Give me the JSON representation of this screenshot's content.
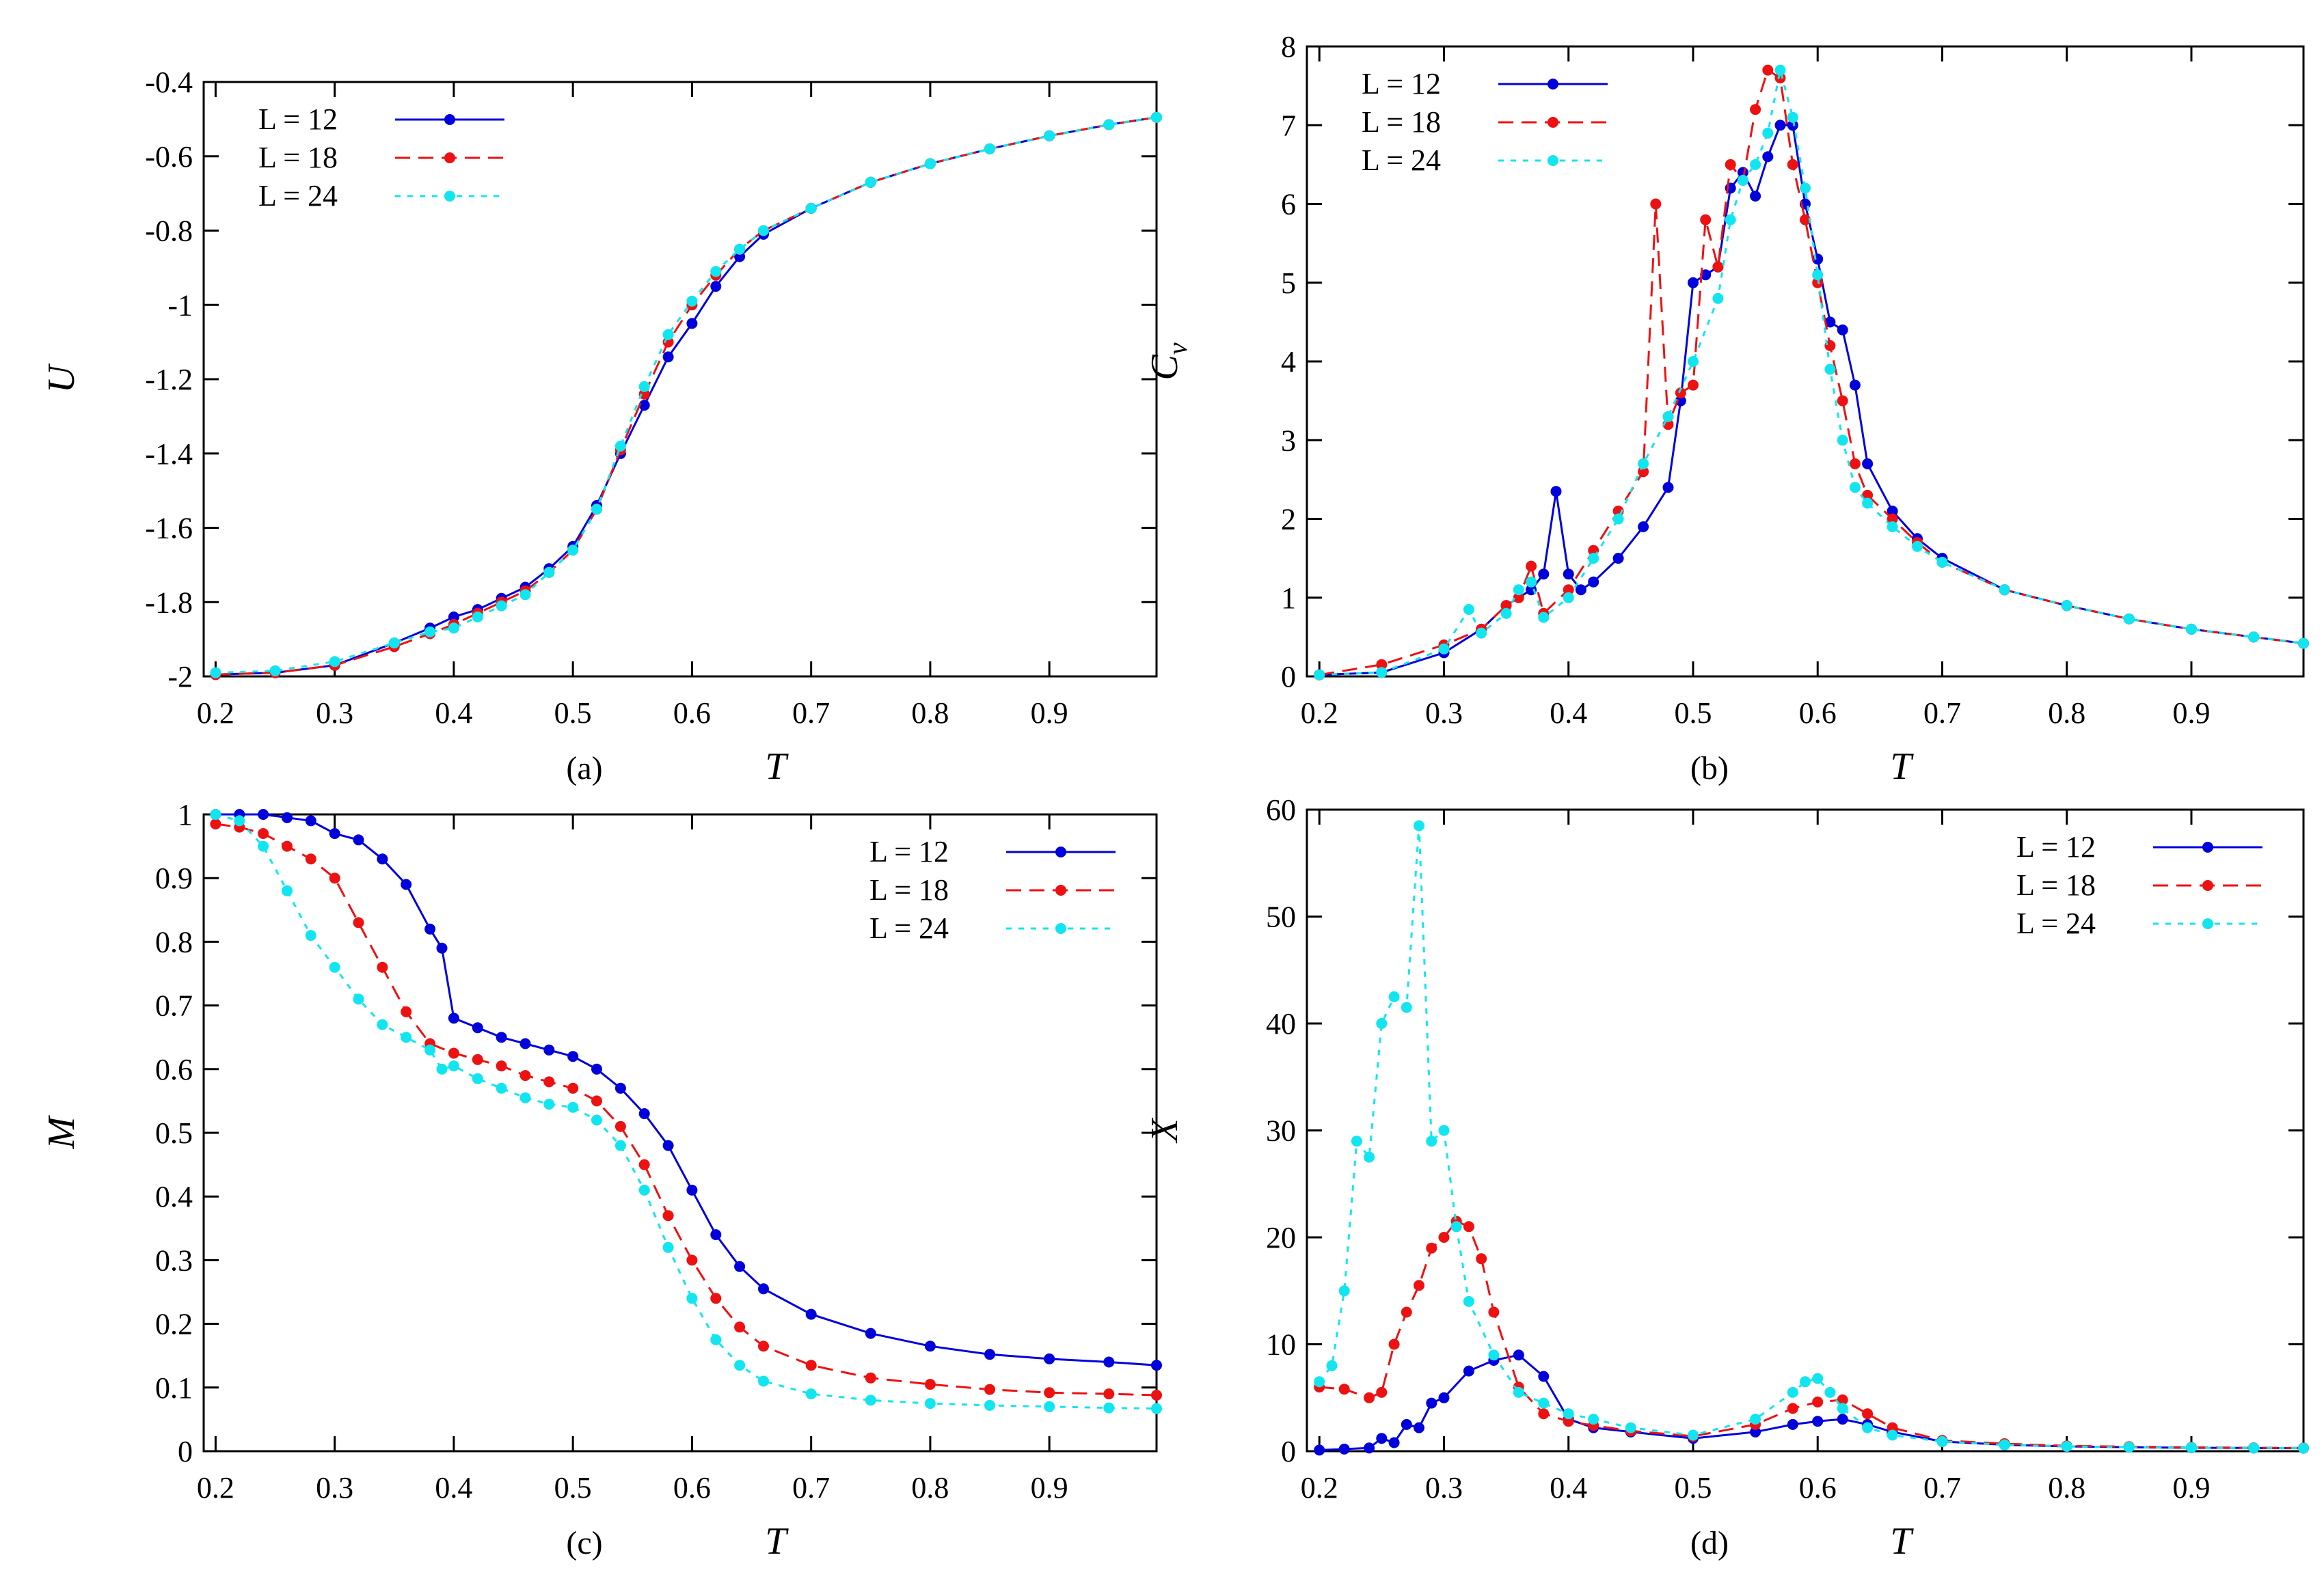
{
  "figure": {
    "colors": {
      "L12": "#0000dd",
      "L18": "#ee1111",
      "L24": "#11e6f0"
    }
  },
  "chart_data": [
    {
      "id": "a",
      "type": "line",
      "panel_label": "(a)",
      "xlabel": "T",
      "ylabel": "U",
      "xlim": [
        0.19,
        0.99
      ],
      "ylim": [
        -2.0,
        -0.4
      ],
      "xticks": [
        0.2,
        0.3,
        0.4,
        0.5,
        0.6,
        0.7,
        0.8,
        0.9
      ],
      "xtick_labels": [
        "0.2",
        "0.3",
        "0.4",
        "0.5",
        "0.6",
        "0.7",
        "0.8",
        "0.9"
      ],
      "yticks": [
        -2.0,
        -1.8,
        -1.6,
        -1.4,
        -1.2,
        -1.0,
        -0.8,
        -0.6,
        -0.4
      ],
      "ytick_labels": [
        "-2",
        "-1.8",
        "-1.6",
        "-1.4",
        "-1.2",
        "-1",
        "-0.8",
        "-0.6",
        "-0.4"
      ],
      "legend_position": "top-left",
      "series": [
        {
          "name": "L  = 12",
          "color": "#0000dd",
          "dash": "solid",
          "x": [
            0.2,
            0.25,
            0.3,
            0.35,
            0.38,
            0.4,
            0.42,
            0.44,
            0.46,
            0.48,
            0.5,
            0.52,
            0.54,
            0.56,
            0.58,
            0.6,
            0.62,
            0.64,
            0.66,
            0.7,
            0.75,
            0.8,
            0.85,
            0.9,
            0.95,
            0.99
          ],
          "y": [
            -1.995,
            -1.99,
            -1.97,
            -1.91,
            -1.87,
            -1.84,
            -1.82,
            -1.79,
            -1.76,
            -1.71,
            -1.65,
            -1.54,
            -1.4,
            -1.27,
            -1.14,
            -1.05,
            -0.95,
            -0.87,
            -0.81,
            -0.74,
            -0.67,
            -0.62,
            -0.58,
            -0.545,
            -0.515,
            -0.495
          ]
        },
        {
          "name": "L  = 18",
          "color": "#ee1111",
          "dash": "dash",
          "x": [
            0.2,
            0.25,
            0.3,
            0.35,
            0.38,
            0.4,
            0.42,
            0.44,
            0.46,
            0.48,
            0.5,
            0.52,
            0.54,
            0.56,
            0.58,
            0.6,
            0.62,
            0.64,
            0.66,
            0.7,
            0.75,
            0.8,
            0.85,
            0.9,
            0.95,
            0.99
          ],
          "y": [
            -1.995,
            -1.99,
            -1.97,
            -1.92,
            -1.885,
            -1.86,
            -1.83,
            -1.8,
            -1.77,
            -1.72,
            -1.66,
            -1.55,
            -1.39,
            -1.24,
            -1.1,
            -1.0,
            -0.92,
            -0.85,
            -0.8,
            -0.74,
            -0.67,
            -0.62,
            -0.58,
            -0.545,
            -0.515,
            -0.495
          ]
        },
        {
          "name": "L  = 24",
          "color": "#11e6f0",
          "dash": "dot",
          "x": [
            0.2,
            0.25,
            0.3,
            0.35,
            0.38,
            0.4,
            0.42,
            0.44,
            0.46,
            0.48,
            0.5,
            0.52,
            0.54,
            0.56,
            0.58,
            0.6,
            0.62,
            0.64,
            0.66,
            0.7,
            0.75,
            0.8,
            0.85,
            0.9,
            0.95,
            0.99
          ],
          "y": [
            -1.99,
            -1.985,
            -1.96,
            -1.91,
            -1.88,
            -1.87,
            -1.84,
            -1.81,
            -1.78,
            -1.72,
            -1.66,
            -1.55,
            -1.38,
            -1.22,
            -1.08,
            -0.99,
            -0.91,
            -0.85,
            -0.8,
            -0.74,
            -0.67,
            -0.62,
            -0.58,
            -0.545,
            -0.515,
            -0.495
          ]
        }
      ]
    },
    {
      "id": "b",
      "type": "line",
      "panel_label": "(b)",
      "xlabel": "T",
      "ylabel": "C",
      "ylabel_sub": "v",
      "xlim": [
        0.19,
        0.99
      ],
      "ylim": [
        0,
        8
      ],
      "xticks": [
        0.2,
        0.3,
        0.4,
        0.5,
        0.6,
        0.7,
        0.8,
        0.9
      ],
      "xtick_labels": [
        "0.2",
        "0.3",
        "0.4",
        "0.5",
        "0.6",
        "0.7",
        "0.8",
        "0.9"
      ],
      "yticks": [
        0,
        1,
        2,
        3,
        4,
        5,
        6,
        7,
        8
      ],
      "ytick_labels": [
        "0",
        "1",
        "2",
        "3",
        "4",
        "5",
        "6",
        "7",
        "8"
      ],
      "legend_position": "top-left",
      "series": [
        {
          "name": "L  = 12",
          "color": "#0000dd",
          "dash": "solid",
          "x": [
            0.2,
            0.25,
            0.3,
            0.33,
            0.35,
            0.37,
            0.38,
            0.39,
            0.4,
            0.41,
            0.42,
            0.44,
            0.46,
            0.48,
            0.49,
            0.5,
            0.51,
            0.52,
            0.53,
            0.54,
            0.55,
            0.56,
            0.57,
            0.58,
            0.59,
            0.6,
            0.61,
            0.62,
            0.63,
            0.64,
            0.66,
            0.68,
            0.7,
            0.75,
            0.8,
            0.85,
            0.9,
            0.95,
            0.99
          ],
          "y": [
            0.02,
            0.05,
            0.3,
            0.6,
            0.9,
            1.1,
            1.3,
            2.35,
            1.3,
            1.1,
            1.2,
            1.5,
            1.9,
            2.4,
            3.5,
            5.0,
            5.1,
            5.2,
            6.2,
            6.4,
            6.1,
            6.6,
            7.0,
            7.0,
            6.0,
            5.3,
            4.5,
            4.4,
            3.7,
            2.7,
            2.1,
            1.75,
            1.5,
            1.1,
            0.9,
            0.73,
            0.6,
            0.5,
            0.42
          ]
        },
        {
          "name": "L  = 18",
          "color": "#ee1111",
          "dash": "dash",
          "x": [
            0.2,
            0.25,
            0.3,
            0.33,
            0.35,
            0.36,
            0.37,
            0.38,
            0.4,
            0.42,
            0.44,
            0.46,
            0.47,
            0.48,
            0.49,
            0.5,
            0.51,
            0.52,
            0.53,
            0.54,
            0.55,
            0.56,
            0.57,
            0.58,
            0.59,
            0.6,
            0.61,
            0.62,
            0.63,
            0.64,
            0.66,
            0.68,
            0.7,
            0.75,
            0.8,
            0.85,
            0.9,
            0.95,
            0.99
          ],
          "y": [
            0.02,
            0.15,
            0.4,
            0.6,
            0.9,
            1.0,
            1.4,
            0.8,
            1.1,
            1.6,
            2.1,
            2.6,
            6.0,
            3.2,
            3.6,
            3.7,
            5.8,
            5.2,
            6.5,
            6.3,
            7.2,
            7.7,
            7.6,
            6.5,
            5.8,
            5.0,
            4.2,
            3.5,
            2.7,
            2.3,
            2.0,
            1.7,
            1.45,
            1.1,
            0.9,
            0.73,
            0.6,
            0.5,
            0.42
          ]
        },
        {
          "name": "L  = 24",
          "color": "#11e6f0",
          "dash": "dot",
          "x": [
            0.2,
            0.25,
            0.3,
            0.32,
            0.33,
            0.35,
            0.36,
            0.37,
            0.38,
            0.4,
            0.42,
            0.44,
            0.46,
            0.48,
            0.5,
            0.52,
            0.53,
            0.54,
            0.55,
            0.56,
            0.57,
            0.58,
            0.59,
            0.6,
            0.61,
            0.62,
            0.63,
            0.64,
            0.66,
            0.68,
            0.7,
            0.75,
            0.8,
            0.85,
            0.9,
            0.95,
            0.99
          ],
          "y": [
            0.02,
            0.05,
            0.35,
            0.85,
            0.55,
            0.8,
            1.1,
            1.2,
            0.75,
            1.0,
            1.5,
            2.0,
            2.7,
            3.3,
            4.0,
            4.8,
            5.8,
            6.3,
            6.5,
            6.9,
            7.7,
            7.1,
            6.2,
            5.1,
            3.9,
            3.0,
            2.4,
            2.2,
            1.9,
            1.65,
            1.45,
            1.1,
            0.9,
            0.73,
            0.6,
            0.5,
            0.42
          ]
        }
      ]
    },
    {
      "id": "c",
      "type": "line",
      "panel_label": "(c)",
      "xlabel": "T",
      "ylabel": "M",
      "xlim": [
        0.19,
        0.99
      ],
      "ylim": [
        0,
        1
      ],
      "xticks": [
        0.2,
        0.3,
        0.4,
        0.5,
        0.6,
        0.7,
        0.8,
        0.9
      ],
      "xtick_labels": [
        "0.2",
        "0.3",
        "0.4",
        "0.5",
        "0.6",
        "0.7",
        "0.8",
        "0.9"
      ],
      "yticks": [
        0,
        0.1,
        0.2,
        0.3,
        0.4,
        0.5,
        0.6,
        0.7,
        0.8,
        0.9,
        1.0
      ],
      "ytick_labels": [
        "0",
        "0.1",
        "0.2",
        "0.3",
        "0.4",
        "0.5",
        "0.6",
        "0.7",
        "0.8",
        "0.9",
        "1"
      ],
      "legend_position": "top-right",
      "series": [
        {
          "name": "L  = 12",
          "color": "#0000dd",
          "dash": "solid",
          "x": [
            0.2,
            0.22,
            0.24,
            0.26,
            0.28,
            0.3,
            0.32,
            0.34,
            0.36,
            0.38,
            0.39,
            0.4,
            0.42,
            0.44,
            0.46,
            0.48,
            0.5,
            0.52,
            0.54,
            0.56,
            0.58,
            0.6,
            0.62,
            0.64,
            0.66,
            0.7,
            0.75,
            0.8,
            0.85,
            0.9,
            0.95,
            0.99
          ],
          "y": [
            1.0,
            1.0,
            1.0,
            0.995,
            0.99,
            0.97,
            0.96,
            0.93,
            0.89,
            0.82,
            0.79,
            0.68,
            0.665,
            0.65,
            0.64,
            0.63,
            0.62,
            0.6,
            0.57,
            0.53,
            0.48,
            0.41,
            0.34,
            0.29,
            0.255,
            0.215,
            0.185,
            0.165,
            0.152,
            0.145,
            0.14,
            0.135
          ]
        },
        {
          "name": "L  = 18",
          "color": "#ee1111",
          "dash": "dash",
          "x": [
            0.2,
            0.22,
            0.24,
            0.26,
            0.28,
            0.3,
            0.32,
            0.34,
            0.36,
            0.38,
            0.4,
            0.42,
            0.44,
            0.46,
            0.48,
            0.5,
            0.52,
            0.54,
            0.56,
            0.58,
            0.6,
            0.62,
            0.64,
            0.66,
            0.7,
            0.75,
            0.8,
            0.85,
            0.9,
            0.95,
            0.99
          ],
          "y": [
            0.985,
            0.98,
            0.97,
            0.95,
            0.93,
            0.9,
            0.83,
            0.76,
            0.69,
            0.64,
            0.625,
            0.615,
            0.605,
            0.59,
            0.58,
            0.57,
            0.55,
            0.51,
            0.45,
            0.37,
            0.3,
            0.24,
            0.195,
            0.165,
            0.135,
            0.115,
            0.105,
            0.097,
            0.092,
            0.09,
            0.088
          ]
        },
        {
          "name": "L  = 24",
          "color": "#11e6f0",
          "dash": "dot",
          "x": [
            0.2,
            0.22,
            0.24,
            0.26,
            0.28,
            0.3,
            0.32,
            0.34,
            0.36,
            0.38,
            0.39,
            0.4,
            0.42,
            0.44,
            0.46,
            0.48,
            0.5,
            0.52,
            0.54,
            0.56,
            0.58,
            0.6,
            0.62,
            0.64,
            0.66,
            0.7,
            0.75,
            0.8,
            0.85,
            0.9,
            0.95,
            0.99
          ],
          "y": [
            1.0,
            0.99,
            0.95,
            0.88,
            0.81,
            0.76,
            0.71,
            0.67,
            0.65,
            0.63,
            0.6,
            0.605,
            0.585,
            0.57,
            0.555,
            0.545,
            0.54,
            0.52,
            0.48,
            0.41,
            0.32,
            0.24,
            0.175,
            0.135,
            0.11,
            0.09,
            0.08,
            0.075,
            0.072,
            0.07,
            0.068,
            0.067
          ]
        }
      ]
    },
    {
      "id": "d",
      "type": "line",
      "panel_label": "(d)",
      "xlabel": "T",
      "ylabel": "X",
      "xlim": [
        0.19,
        0.99
      ],
      "ylim": [
        0,
        60
      ],
      "xticks": [
        0.2,
        0.3,
        0.4,
        0.5,
        0.6,
        0.7,
        0.8,
        0.9
      ],
      "xtick_labels": [
        "0.2",
        "0.3",
        "0.4",
        "0.5",
        "0.6",
        "0.7",
        "0.8",
        "0.9"
      ],
      "yticks": [
        0,
        10,
        20,
        30,
        40,
        50,
        60
      ],
      "ytick_labels": [
        "0",
        "10",
        "20",
        "30",
        "40",
        "50",
        "60"
      ],
      "legend_position": "top-right",
      "series": [
        {
          "name": "L  = 12",
          "color": "#0000dd",
          "dash": "solid",
          "x": [
            0.2,
            0.22,
            0.24,
            0.25,
            0.26,
            0.27,
            0.28,
            0.29,
            0.3,
            0.32,
            0.34,
            0.36,
            0.38,
            0.4,
            0.42,
            0.45,
            0.5,
            0.55,
            0.58,
            0.6,
            0.62,
            0.64,
            0.66,
            0.7,
            0.75,
            0.8,
            0.85,
            0.9,
            0.95,
            0.99
          ],
          "y": [
            0.1,
            0.2,
            0.3,
            1.2,
            0.8,
            2.5,
            2.2,
            4.5,
            5.0,
            7.5,
            8.5,
            9.0,
            7.0,
            3.0,
            2.2,
            1.8,
            1.2,
            1.8,
            2.5,
            2.8,
            3.0,
            2.5,
            1.8,
            0.9,
            0.6,
            0.45,
            0.38,
            0.32,
            0.3,
            0.28
          ]
        },
        {
          "name": "L  = 18",
          "color": "#ee1111",
          "dash": "dash",
          "x": [
            0.2,
            0.22,
            0.24,
            0.25,
            0.26,
            0.27,
            0.28,
            0.29,
            0.3,
            0.31,
            0.32,
            0.33,
            0.34,
            0.36,
            0.38,
            0.4,
            0.42,
            0.45,
            0.5,
            0.55,
            0.58,
            0.6,
            0.62,
            0.64,
            0.66,
            0.7,
            0.75,
            0.8,
            0.85,
            0.9,
            0.95,
            0.99
          ],
          "y": [
            6.0,
            5.8,
            5.0,
            5.5,
            10.0,
            13.0,
            15.5,
            19.0,
            20.0,
            21.5,
            21.0,
            18.0,
            13.0,
            6.0,
            3.5,
            2.8,
            2.4,
            1.9,
            1.4,
            2.5,
            4.0,
            4.6,
            4.8,
            3.5,
            2.2,
            1.0,
            0.7,
            0.5,
            0.42,
            0.36,
            0.32,
            0.3
          ]
        },
        {
          "name": "L  = 24",
          "color": "#11e6f0",
          "dash": "dot",
          "x": [
            0.2,
            0.21,
            0.22,
            0.23,
            0.24,
            0.25,
            0.26,
            0.27,
            0.28,
            0.29,
            0.3,
            0.31,
            0.32,
            0.34,
            0.36,
            0.38,
            0.4,
            0.42,
            0.45,
            0.5,
            0.55,
            0.58,
            0.59,
            0.6,
            0.61,
            0.62,
            0.64,
            0.66,
            0.7,
            0.75,
            0.8,
            0.85,
            0.9,
            0.95,
            0.99
          ],
          "y": [
            6.5,
            8.0,
            15.0,
            29.0,
            27.5,
            40.0,
            42.5,
            41.5,
            58.5,
            29.0,
            30.0,
            21.0,
            14.0,
            9.0,
            5.5,
            4.5,
            3.5,
            3.0,
            2.2,
            1.5,
            3.0,
            5.5,
            6.5,
            6.8,
            5.5,
            4.0,
            2.2,
            1.5,
            0.9,
            0.6,
            0.45,
            0.38,
            0.33,
            0.3,
            0.28
          ]
        }
      ]
    }
  ]
}
